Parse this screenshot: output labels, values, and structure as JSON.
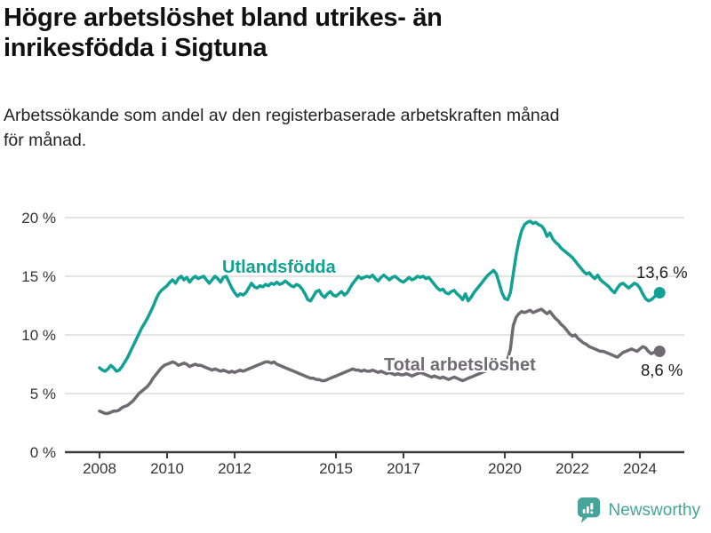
{
  "header": {
    "title": "Högre arbetslöshet bland utrikes- än inrikesfödda i Sigtuna",
    "subtitle": "Arbetssökande som andel av den registerbaserade arbetskraften månad för månad."
  },
  "chart_data": {
    "type": "line",
    "x_unit": "month",
    "x_start": "2008-01",
    "x_end": "2024-08",
    "ylim": [
      0,
      20
    ],
    "grid": true,
    "y_ticks": [
      {
        "value": 0,
        "label": "0 %"
      },
      {
        "value": 5,
        "label": "5 %"
      },
      {
        "value": 10,
        "label": "10 %"
      },
      {
        "value": 15,
        "label": "15 %"
      },
      {
        "value": 20,
        "label": "20 %"
      }
    ],
    "x_ticks": [
      {
        "year": 2008,
        "label": "2008"
      },
      {
        "year": 2010,
        "label": "2010"
      },
      {
        "year": 2012,
        "label": "2012"
      },
      {
        "year": 2015,
        "label": "2015"
      },
      {
        "year": 2017,
        "label": "2017"
      },
      {
        "year": 2020,
        "label": "2020"
      },
      {
        "year": 2022,
        "label": "2022"
      },
      {
        "year": 2024,
        "label": "2024"
      }
    ],
    "series": [
      {
        "name": "Utlandsfödda",
        "color": "#11a294",
        "end_label": "13,6 %",
        "end_value": 13.6,
        "values": [
          7.2,
          7.0,
          6.9,
          7.1,
          7.4,
          7.2,
          6.9,
          7.0,
          7.3,
          7.7,
          8.1,
          8.6,
          9.1,
          9.6,
          10.1,
          10.6,
          11.0,
          11.4,
          11.9,
          12.4,
          13.0,
          13.5,
          13.8,
          14.0,
          14.2,
          14.5,
          14.7,
          14.4,
          14.8,
          15.0,
          14.7,
          14.9,
          14.5,
          14.8,
          15.0,
          14.8,
          14.9,
          15.0,
          14.7,
          14.4,
          14.7,
          15.0,
          14.8,
          14.5,
          14.9,
          15.0,
          14.5,
          14.0,
          13.6,
          13.3,
          13.5,
          13.4,
          13.6,
          14.0,
          14.4,
          14.1,
          14.0,
          14.2,
          14.1,
          14.3,
          14.2,
          14.4,
          14.3,
          14.5,
          14.3,
          14.4,
          14.6,
          14.4,
          14.2,
          14.1,
          14.3,
          14.2,
          13.9,
          13.5,
          13.0,
          12.9,
          13.3,
          13.7,
          13.8,
          13.4,
          13.2,
          13.5,
          13.7,
          13.4,
          13.3,
          13.5,
          13.7,
          13.4,
          13.6,
          14.0,
          14.4,
          14.7,
          15.0,
          14.8,
          14.9,
          15.0,
          14.9,
          15.1,
          14.8,
          14.6,
          14.9,
          15.1,
          14.9,
          14.7,
          14.9,
          15.0,
          14.8,
          14.6,
          14.5,
          14.7,
          14.9,
          14.7,
          14.8,
          15.0,
          14.9,
          15.0,
          14.8,
          14.9,
          14.6,
          14.3,
          14.0,
          13.8,
          13.9,
          13.6,
          13.5,
          13.7,
          13.8,
          13.5,
          13.3,
          13.0,
          13.5,
          12.9,
          13.2,
          13.6,
          13.9,
          14.2,
          14.5,
          14.8,
          15.1,
          15.3,
          15.5,
          15.2,
          14.4,
          13.6,
          13.1,
          13.0,
          13.6,
          15.2,
          16.8,
          18.0,
          18.9,
          19.4,
          19.6,
          19.7,
          19.5,
          19.6,
          19.4,
          19.3,
          19.0,
          18.4,
          18.7,
          18.2,
          17.9,
          17.7,
          17.4,
          17.2,
          17.0,
          16.8,
          16.6,
          16.3,
          16.0,
          15.7,
          15.4,
          15.2,
          15.3,
          15.0,
          14.8,
          15.1,
          14.7,
          14.5,
          14.3,
          14.1,
          13.8,
          13.6,
          14.0,
          14.3,
          14.4,
          14.2,
          14.0,
          14.2,
          14.4,
          14.3,
          14.0,
          13.5,
          13.1,
          12.9,
          13.0,
          13.2,
          13.5,
          13.6
        ]
      },
      {
        "name": "Total arbetslöshet",
        "color": "#6f6b72",
        "end_label": "8,6 %",
        "end_value": 8.6,
        "values": [
          3.5,
          3.4,
          3.3,
          3.3,
          3.4,
          3.5,
          3.5,
          3.6,
          3.8,
          3.9,
          4.0,
          4.2,
          4.4,
          4.7,
          5.0,
          5.2,
          5.4,
          5.6,
          5.9,
          6.3,
          6.6,
          6.9,
          7.2,
          7.4,
          7.5,
          7.6,
          7.7,
          7.6,
          7.4,
          7.5,
          7.6,
          7.5,
          7.3,
          7.4,
          7.5,
          7.4,
          7.4,
          7.3,
          7.2,
          7.1,
          7.0,
          7.1,
          7.0,
          6.9,
          7.0,
          6.9,
          6.8,
          6.9,
          6.8,
          6.9,
          7.0,
          6.9,
          7.0,
          7.1,
          7.2,
          7.3,
          7.4,
          7.5,
          7.6,
          7.7,
          7.7,
          7.6,
          7.7,
          7.5,
          7.4,
          7.3,
          7.2,
          7.1,
          7.0,
          6.9,
          6.8,
          6.7,
          6.6,
          6.5,
          6.4,
          6.3,
          6.3,
          6.2,
          6.2,
          6.1,
          6.1,
          6.2,
          6.3,
          6.4,
          6.5,
          6.6,
          6.7,
          6.8,
          6.9,
          7.0,
          7.1,
          7.0,
          7.0,
          6.9,
          7.0,
          6.9,
          6.9,
          7.0,
          6.9,
          6.8,
          6.9,
          6.8,
          6.7,
          6.8,
          6.7,
          6.6,
          6.7,
          6.6,
          6.6,
          6.7,
          6.6,
          6.5,
          6.6,
          6.7,
          6.8,
          6.7,
          6.6,
          6.5,
          6.4,
          6.5,
          6.4,
          6.3,
          6.4,
          6.3,
          6.2,
          6.3,
          6.4,
          6.3,
          6.2,
          6.1,
          6.2,
          6.3,
          6.4,
          6.5,
          6.6,
          6.7,
          6.8,
          6.9,
          7.0,
          7.2,
          7.4,
          7.5,
          7.3,
          7.2,
          7.5,
          7.9,
          8.8,
          10.8,
          11.5,
          11.8,
          12.0,
          11.9,
          12.0,
          12.1,
          11.9,
          12.0,
          12.1,
          12.2,
          12.0,
          11.8,
          12.0,
          11.7,
          11.4,
          11.2,
          10.9,
          10.7,
          10.4,
          10.1,
          9.9,
          10.0,
          9.7,
          9.5,
          9.3,
          9.2,
          9.0,
          8.9,
          8.8,
          8.7,
          8.6,
          8.6,
          8.5,
          8.4,
          8.3,
          8.2,
          8.1,
          8.3,
          8.5,
          8.6,
          8.7,
          8.8,
          8.7,
          8.6,
          8.8,
          9.0,
          8.9,
          8.6,
          8.4,
          8.5,
          8.7,
          8.6
        ]
      }
    ]
  },
  "footer": {
    "brand": "Newsworthy",
    "brand_color": "#46a49a"
  }
}
